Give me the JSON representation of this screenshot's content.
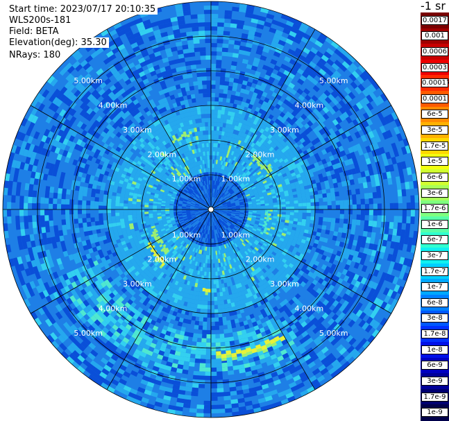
{
  "header": {
    "start_time": "Start time: 2023/07/17 20:10:35",
    "device": "WLS200s-181",
    "field": "Field: BETA",
    "elevation": "Elevation(deg): 35.30",
    "nrays": "NRays: 180"
  },
  "colorbar": {
    "title": "-1 sr",
    "entries": [
      {
        "label": "0.0017",
        "color": "#7a0000"
      },
      {
        "label": "0.001",
        "color": "#a00000"
      },
      {
        "label": "0.0006",
        "color": "#c80000"
      },
      {
        "label": "0.0003",
        "color": "#ee0000"
      },
      {
        "label": "0.00017",
        "color": "#ff2a00"
      },
      {
        "label": "0.0001",
        "color": "#ff5a00"
      },
      {
        "label": "6e-5",
        "color": "#ff8a00"
      },
      {
        "label": "3e-5",
        "color": "#ffb000"
      },
      {
        "label": "1.7e-5",
        "color": "#ffd800"
      },
      {
        "label": "1e-5",
        "color": "#f2ff10"
      },
      {
        "label": "6e-6",
        "color": "#d0ff30"
      },
      {
        "label": "3e-6",
        "color": "#a8ff58"
      },
      {
        "label": "1.7e-6",
        "color": "#80ff80"
      },
      {
        "label": "1e-6",
        "color": "#58ffa8"
      },
      {
        "label": "6e-7",
        "color": "#30ffd0"
      },
      {
        "label": "3e-7",
        "color": "#10f0f0"
      },
      {
        "label": "1.7e-7",
        "color": "#00d0ff"
      },
      {
        "label": "1e-7",
        "color": "#00a8ff"
      },
      {
        "label": "6e-8",
        "color": "#0080ff"
      },
      {
        "label": "3e-8",
        "color": "#0058ff"
      },
      {
        "label": "1.7e-8",
        "color": "#0030ff"
      },
      {
        "label": "1e-8",
        "color": "#0010e8"
      },
      {
        "label": "6e-9",
        "color": "#0000c0"
      },
      {
        "label": "3e-9",
        "color": "#000098"
      },
      {
        "label": "1.7e-9",
        "color": "#000070"
      },
      {
        "label": "1e-9",
        "color": "#00004a"
      }
    ]
  },
  "radar": {
    "max_range_km": 6,
    "ring_km": [
      1,
      2,
      3,
      4,
      5,
      6
    ],
    "ring_labels": [
      "1.00km",
      "2.00km",
      "3.00km",
      "4.00km",
      "5.00km"
    ],
    "spoke_step_deg": 30,
    "colors": {
      "base": "#1e7fe6",
      "dark": "#0a4fd8",
      "light": "#25a8ee",
      "cyan": "#33d0f0",
      "aqua": "#4fe8d0",
      "green": "#9ef070",
      "yellow": "#e6f23a"
    }
  }
}
